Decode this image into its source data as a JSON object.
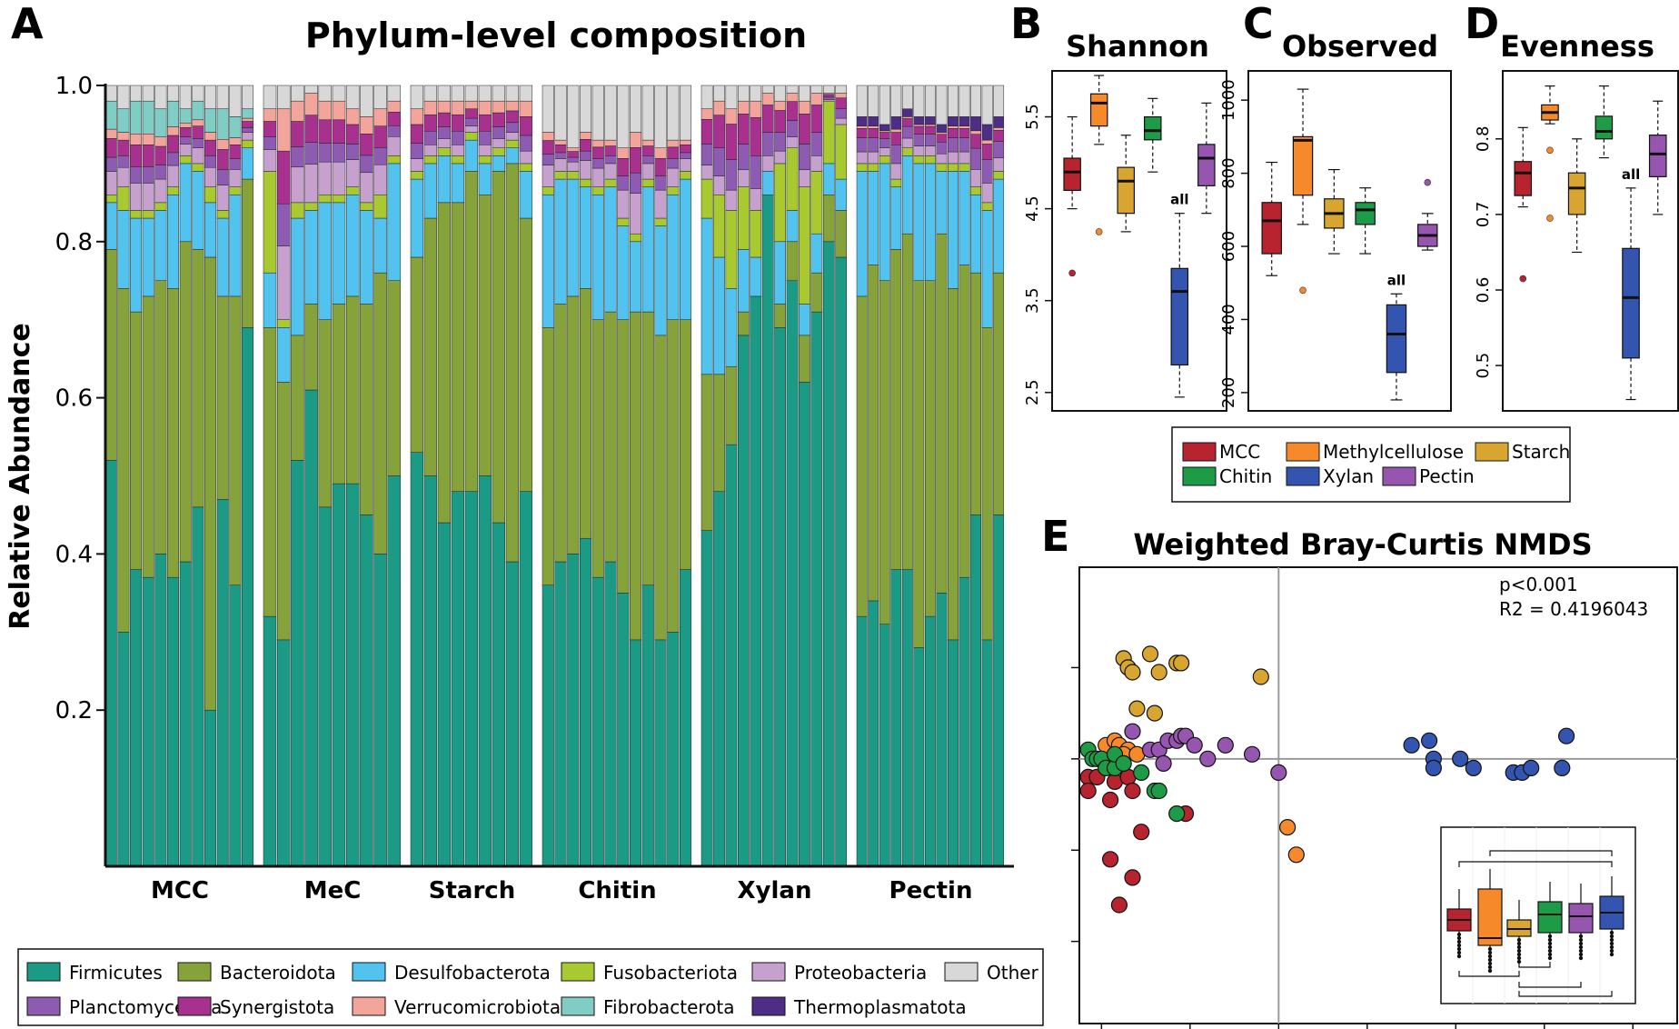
{
  "panel_letters": {
    "a": "A",
    "b": "B",
    "c": "C",
    "d": "D",
    "e": "E"
  },
  "colors": {
    "Firmicutes": "#1b9a86",
    "Bacteroidota": "#86a33b",
    "Desulfobacterota": "#52c3ee",
    "Fusobacteriota": "#a9c931",
    "Proteobacteria": "#c7a1ce",
    "Other": "#d8d8d8",
    "Planctomycetota": "#8d5bb2",
    "Synergistota": "#a8308f",
    "Verrucomicrobiota": "#f4a59b",
    "Fibrobacterota": "#7fcdc5",
    "Thermoplasmatota": "#4e2d86",
    "MCC": "#b7242f",
    "Methylcellulose": "#f68a2b",
    "Starch": "#d8a630",
    "Chitin": "#1e9b46",
    "Xylan": "#3355b0",
    "Pectin": "#9655ae"
  },
  "legend_a": [
    "Firmicutes",
    "Bacteroidota",
    "Desulfobacterota",
    "Fusobacteriota",
    "Proteobacteria",
    "Other",
    "Planctomycetota",
    "Synergistota",
    "Verrucomicrobiota",
    "Fibrobacterota",
    "Thermoplasmatota"
  ],
  "legend_bcd": [
    "MCC",
    "Methylcellulose",
    "Starch",
    "Chitin",
    "Xylan",
    "Pectin"
  ],
  "chart_data": [
    {
      "type": "bar",
      "stacked": true,
      "title": "Phylum-level composition",
      "ylabel": "Relative Abundance",
      "ylim": [
        0,
        1
      ],
      "yticks": [
        "0.2",
        "0.4",
        "0.6",
        "0.8",
        "1.0"
      ],
      "groups": [
        "MCC",
        "MeC",
        "Starch",
        "Chitin",
        "Xylan",
        "Pectin"
      ],
      "phyla_order": [
        "Firmicutes",
        "Bacteroidota",
        "Desulfobacterota",
        "Fusobacteriota",
        "Proteobacteria",
        "Planctomycetota",
        "Synergistota",
        "Verrucomicrobiota",
        "Fibrobacterota",
        "Thermoplasmatota",
        "Other"
      ],
      "firmicutes": [
        [
          0.52,
          0.3,
          0.38,
          0.37,
          0.4,
          0.37,
          0.39,
          0.46,
          0.2,
          0.47,
          0.36,
          0.69
        ],
        [
          0.32,
          0.29,
          0.52,
          0.61,
          0.46,
          0.49,
          0.49,
          0.45,
          0.4,
          0.5
        ],
        [
          0.53,
          0.5,
          0.44,
          0.48,
          0.48,
          0.5,
          0.44,
          0.39,
          0.48
        ],
        [
          0.36,
          0.39,
          0.4,
          0.42,
          0.37,
          0.39,
          0.35,
          0.29,
          0.36,
          0.29,
          0.3,
          0.38
        ],
        [
          0.43,
          0.48,
          0.54,
          0.68,
          0.73,
          0.86,
          0.69,
          0.75,
          0.62,
          0.71,
          0.8,
          0.78
        ],
        [
          0.32,
          0.34,
          0.31,
          0.38,
          0.38,
          0.28,
          0.32,
          0.35,
          0.29,
          0.37,
          0.45,
          0.29,
          0.45
        ]
      ],
      "bacteroidota": [
        [
          0.27,
          0.44,
          0.33,
          0.36,
          0.35,
          0.37,
          0.41,
          0.33,
          0.58,
          0.26,
          0.37,
          0.19
        ],
        [
          0.37,
          0.33,
          0.16,
          0.11,
          0.24,
          0.23,
          0.24,
          0.27,
          0.36,
          0.25
        ],
        [
          0.25,
          0.33,
          0.41,
          0.37,
          0.41,
          0.36,
          0.45,
          0.51,
          0.35
        ],
        [
          0.33,
          0.33,
          0.33,
          0.32,
          0.33,
          0.32,
          0.35,
          0.42,
          0.35,
          0.39,
          0.4,
          0.32
        ],
        [
          0.2,
          0.15,
          0.1,
          0.03,
          0.0,
          0.0,
          0.03,
          0.05,
          0.06,
          0.05,
          0.06,
          0.06
        ],
        [
          0.41,
          0.43,
          0.44,
          0.41,
          0.43,
          0.47,
          0.43,
          0.46,
          0.45,
          0.4,
          0.31,
          0.4,
          0.31
        ]
      ],
      "desulfobacterota": [
        [
          0.06,
          0.1,
          0.12,
          0.1,
          0.09,
          0.12,
          0.1,
          0.1,
          0.07,
          0.1,
          0.13,
          0.04
        ],
        [
          0.07,
          0.07,
          0.15,
          0.12,
          0.15,
          0.13,
          0.13,
          0.12,
          0.07,
          0.15
        ],
        [
          0.1,
          0.07,
          0.06,
          0.05,
          0.04,
          0.04,
          0.02,
          0.02,
          0.06
        ],
        [
          0.17,
          0.16,
          0.15,
          0.13,
          0.16,
          0.16,
          0.12,
          0.09,
          0.16,
          0.14,
          0.16,
          0.18
        ],
        [
          0.2,
          0.15,
          0.1,
          0.08,
          0.05,
          0.03,
          0.08,
          0.04,
          0.04,
          0.05,
          0.04,
          0.04
        ],
        [
          0.16,
          0.12,
          0.15,
          0.08,
          0.1,
          0.15,
          0.15,
          0.08,
          0.15,
          0.12,
          0.1,
          0.15,
          0.12
        ]
      ],
      "fusobacteriota": [
        [
          0.01,
          0.03,
          0.01,
          0.01,
          0.01,
          0.01,
          0.01,
          0.01,
          0.02,
          0.01,
          0.01,
          0.01
        ],
        [
          0.13,
          0.01,
          0.02,
          0.01,
          0.01,
          0.01,
          0.01,
          0.01,
          0.03,
          0.01
        ],
        [
          0.01,
          0.01,
          0.01,
          0.01,
          0.01,
          0.01,
          0.01,
          0.01,
          0.01
        ],
        [
          0.01,
          0.01,
          0.01,
          0.01,
          0.01,
          0.01,
          0.01,
          0.01,
          0.01,
          0.01,
          0.01,
          0.01
        ],
        [
          0.05,
          0.08,
          0.1,
          0.08,
          0.06,
          0.0,
          0.1,
          0.08,
          0.15,
          0.08,
          0.08,
          0.07
        ],
        [
          0.01,
          0.01,
          0.01,
          0.01,
          0.01,
          0.01,
          0.01,
          0.01,
          0.01,
          0.01,
          0.01,
          0.01,
          0.01
        ]
      ],
      "other": [
        [
          0.02,
          0.03,
          0.02,
          0.02,
          0.03,
          0.02,
          0.03,
          0.02,
          0.03,
          0.03,
          0.04,
          0.03
        ],
        [
          0.03,
          0.03,
          0.02,
          0.01,
          0.02,
          0.02,
          0.03,
          0.04,
          0.03,
          0.02
        ],
        [
          0.03,
          0.02,
          0.02,
          0.02,
          0.02,
          0.02,
          0.02,
          0.02,
          0.02
        ],
        [
          0.06,
          0.07,
          0.08,
          0.06,
          0.07,
          0.07,
          0.08,
          0.06,
          0.07,
          0.08,
          0.07,
          0.07
        ],
        [
          0.03,
          0.02,
          0.03,
          0.02,
          0.02,
          0.01,
          0.02,
          0.01,
          0.02,
          0.01,
          0.01,
          0.01
        ],
        [
          0.04,
          0.04,
          0.05,
          0.04,
          0.03,
          0.04,
          0.04,
          0.05,
          0.04,
          0.04,
          0.04,
          0.05,
          0.04
        ]
      ]
    },
    {
      "type": "box",
      "title": "Shannon",
      "ylim": [
        2.3,
        6.0
      ],
      "yticks": [
        "2.5",
        "3.5",
        "4.5",
        "5.5"
      ],
      "yvals": [
        2.5,
        3.5,
        4.5,
        5.5
      ],
      "annotation": "all",
      "boxes": [
        {
          "group": "MCC",
          "min": 4.5,
          "q1": 4.7,
          "med": 4.9,
          "q3": 5.05,
          "max": 5.5,
          "outliers": [
            3.8
          ]
        },
        {
          "group": "Methylcellulose",
          "min": 5.2,
          "q1": 5.4,
          "med": 5.65,
          "q3": 5.75,
          "max": 5.95,
          "outliers": [
            4.25
          ]
        },
        {
          "group": "Starch",
          "min": 4.25,
          "q1": 4.45,
          "med": 4.8,
          "q3": 4.95,
          "max": 5.3,
          "outliers": []
        },
        {
          "group": "Chitin",
          "min": 4.9,
          "q1": 5.25,
          "med": 5.35,
          "q3": 5.5,
          "max": 5.7,
          "outliers": []
        },
        {
          "group": "Xylan",
          "min": 2.45,
          "q1": 2.8,
          "med": 3.6,
          "q3": 3.85,
          "max": 4.45,
          "outliers": []
        },
        {
          "group": "Pectin",
          "min": 4.45,
          "q1": 4.75,
          "med": 5.05,
          "q3": 5.2,
          "max": 5.65,
          "outliers": []
        }
      ]
    },
    {
      "type": "box",
      "title": "Observed",
      "ylim": [
        150,
        1080
      ],
      "yticks": [
        "200",
        "400",
        "600",
        "800",
        "1000"
      ],
      "yvals": [
        200,
        400,
        600,
        800,
        1000
      ],
      "annotation": "all",
      "boxes": [
        {
          "group": "MCC",
          "min": 520,
          "q1": 580,
          "med": 670,
          "q3": 720,
          "max": 830,
          "outliers": []
        },
        {
          "group": "Methylcellulose",
          "min": 660,
          "q1": 740,
          "med": 890,
          "q3": 900,
          "max": 1030,
          "outliers": [
            480
          ]
        },
        {
          "group": "Starch",
          "min": 580,
          "q1": 650,
          "med": 690,
          "q3": 730,
          "max": 810,
          "outliers": []
        },
        {
          "group": "Chitin",
          "min": 580,
          "q1": 660,
          "med": 700,
          "q3": 720,
          "max": 760,
          "outliers": []
        },
        {
          "group": "Xylan",
          "min": 180,
          "q1": 255,
          "med": 360,
          "q3": 440,
          "max": 470,
          "outliers": []
        },
        {
          "group": "Pectin",
          "min": 590,
          "q1": 600,
          "med": 630,
          "q3": 660,
          "max": 690,
          "outliers": [
            775
          ]
        }
      ]
    },
    {
      "type": "box",
      "title": "Evenness",
      "ylim": [
        0.44,
        0.89
      ],
      "yticks": [
        "0.5",
        "0.6",
        "0.7",
        "0.8"
      ],
      "yvals": [
        0.5,
        0.6,
        0.7,
        0.8
      ],
      "annotation": "all",
      "boxes": [
        {
          "group": "MCC",
          "min": 0.71,
          "q1": 0.725,
          "med": 0.755,
          "q3": 0.77,
          "max": 0.815,
          "outliers": [
            0.615
          ]
        },
        {
          "group": "Methylcellulose",
          "min": 0.82,
          "q1": 0.825,
          "med": 0.835,
          "q3": 0.845,
          "max": 0.87,
          "outliers": [
            0.785,
            0.695
          ]
        },
        {
          "group": "Starch",
          "min": 0.65,
          "q1": 0.7,
          "med": 0.735,
          "q3": 0.755,
          "max": 0.8,
          "outliers": []
        },
        {
          "group": "Chitin",
          "min": 0.775,
          "q1": 0.8,
          "med": 0.81,
          "q3": 0.83,
          "max": 0.87,
          "outliers": []
        },
        {
          "group": "Xylan",
          "min": 0.455,
          "q1": 0.51,
          "med": 0.59,
          "q3": 0.655,
          "max": 0.735,
          "outliers": []
        },
        {
          "group": "Pectin",
          "min": 0.7,
          "q1": 0.75,
          "med": 0.78,
          "q3": 0.805,
          "max": 0.85,
          "outliers": []
        }
      ]
    },
    {
      "type": "scatter",
      "title": "Weighted Bray-Curtis NMDS",
      "annotation": [
        "p<0.001",
        "R2 = 0.4196043"
      ],
      "xlim": [
        -0.45,
        0.9
      ],
      "ylim": [
        -0.58,
        0.42
      ],
      "points": {
        "MCC": [
          [
            -0.43,
            -0.04
          ],
          [
            -0.43,
            -0.07
          ],
          [
            -0.41,
            -0.04
          ],
          [
            -0.38,
            -0.09
          ],
          [
            -0.37,
            -0.05
          ],
          [
            -0.34,
            -0.04
          ],
          [
            -0.33,
            -0.07
          ],
          [
            -0.31,
            -0.16
          ],
          [
            -0.38,
            -0.22
          ],
          [
            -0.33,
            -0.26
          ],
          [
            -0.36,
            -0.32
          ],
          [
            -0.21,
            -0.12
          ]
        ],
        "Methylcellulose": [
          [
            -0.39,
            0.03
          ],
          [
            -0.37,
            0.04
          ],
          [
            -0.36,
            0.03
          ],
          [
            -0.34,
            0.02
          ],
          [
            -0.35,
            0.01
          ],
          [
            -0.32,
            0.01
          ],
          [
            0.02,
            -0.15
          ],
          [
            0.04,
            -0.21
          ]
        ],
        "Starch": [
          [
            -0.35,
            0.22
          ],
          [
            -0.34,
            0.2
          ],
          [
            -0.33,
            0.19
          ],
          [
            -0.32,
            0.11
          ],
          [
            -0.29,
            0.23
          ],
          [
            -0.27,
            0.19
          ],
          [
            -0.23,
            0.21
          ],
          [
            -0.22,
            0.21
          ],
          [
            -0.28,
            0.1
          ],
          [
            -0.04,
            0.18
          ]
        ],
        "Chitin": [
          [
            -0.43,
            0.02
          ],
          [
            -0.42,
            0.0
          ],
          [
            -0.41,
            0.0
          ],
          [
            -0.4,
            0.0
          ],
          [
            -0.39,
            -0.02
          ],
          [
            -0.37,
            -0.02
          ],
          [
            -0.37,
            0.01
          ],
          [
            -0.35,
            -0.01
          ],
          [
            -0.31,
            -0.03
          ],
          [
            -0.28,
            -0.07
          ],
          [
            -0.27,
            -0.07
          ],
          [
            -0.23,
            -0.12
          ]
        ],
        "Chitin_all": [],
        "Pectin": [
          [
            -0.33,
            0.06
          ],
          [
            -0.29,
            0.02
          ],
          [
            -0.27,
            0.02
          ],
          [
            -0.25,
            0.04
          ],
          [
            -0.23,
            0.04
          ],
          [
            -0.22,
            0.05
          ],
          [
            -0.21,
            0.05
          ],
          [
            -0.19,
            0.03
          ],
          [
            -0.12,
            0.03
          ],
          [
            -0.06,
            0.01
          ],
          [
            -0.16,
            0.0
          ],
          [
            -0.26,
            -0.01
          ],
          [
            0.0,
            -0.03
          ]
        ],
        "Xylan": [
          [
            0.3,
            0.03
          ],
          [
            0.34,
            0.04
          ],
          [
            0.35,
            0.0
          ],
          [
            0.35,
            -0.02
          ],
          [
            0.41,
            0.0
          ],
          [
            0.44,
            -0.02
          ],
          [
            0.53,
            -0.03
          ],
          [
            0.55,
            -0.03
          ],
          [
            0.57,
            -0.02
          ],
          [
            0.64,
            -0.02
          ],
          [
            0.65,
            0.05
          ]
        ]
      }
    }
  ]
}
